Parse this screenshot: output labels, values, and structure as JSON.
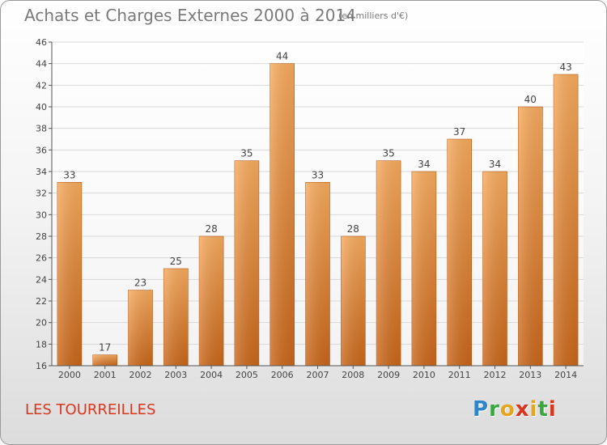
{
  "header": {
    "title": "Achats et Charges Externes 2000 à 2014",
    "unit": "(en milliers d'€)"
  },
  "footer": {
    "commune": "LES TOURREILLES",
    "logo_text": "Proxiti"
  },
  "colors": {
    "bar": "#e8812a",
    "bar_light": "#f6a95a",
    "axis": "#555555",
    "grid": "#d9d9d9",
    "text": "#444444",
    "commune": "#d8371f"
  },
  "chart_data": {
    "type": "bar",
    "title": "Achats et Charges Externes 2000 à 2014",
    "subtitle": "(en milliers d'€)",
    "categories": [
      "2000",
      "2001",
      "2002",
      "2003",
      "2004",
      "2005",
      "2006",
      "2007",
      "2008",
      "2009",
      "2010",
      "2011",
      "2012",
      "2013",
      "2014"
    ],
    "values": [
      33,
      17,
      23,
      25,
      28,
      35,
      44,
      33,
      28,
      35,
      34,
      37,
      34,
      40,
      43
    ],
    "ylim": [
      16,
      46
    ],
    "yticks": [
      16,
      18,
      20,
      22,
      24,
      26,
      28,
      30,
      32,
      34,
      36,
      38,
      40,
      42,
      44,
      46
    ],
    "grid": "horizontal",
    "data_labels": true
  }
}
